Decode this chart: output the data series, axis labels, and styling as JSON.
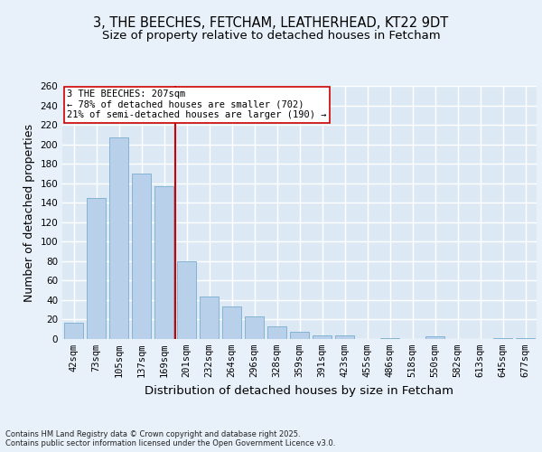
{
  "title1": "3, THE BEECHES, FETCHAM, LEATHERHEAD, KT22 9DT",
  "title2": "Size of property relative to detached houses in Fetcham",
  "xlabel": "Distribution of detached houses by size in Fetcham",
  "ylabel": "Number of detached properties",
  "categories": [
    "42sqm",
    "73sqm",
    "105sqm",
    "137sqm",
    "169sqm",
    "201sqm",
    "232sqm",
    "264sqm",
    "296sqm",
    "328sqm",
    "359sqm",
    "391sqm",
    "423sqm",
    "455sqm",
    "486sqm",
    "518sqm",
    "550sqm",
    "582sqm",
    "613sqm",
    "645sqm",
    "677sqm"
  ],
  "values": [
    17,
    145,
    207,
    170,
    157,
    80,
    44,
    33,
    23,
    13,
    7,
    4,
    4,
    0,
    1,
    0,
    3,
    0,
    0,
    1,
    1
  ],
  "bar_color": "#b8d0ea",
  "bar_edge_color": "#7aadcf",
  "annotation_text": "3 THE BEECHES: 207sqm\n← 78% of detached houses are smaller (702)\n21% of semi-detached houses are larger (190) →",
  "vline_color": "#cc0000",
  "annotation_box_facecolor": "#ffffff",
  "background_color": "#dce9f5",
  "fig_background_color": "#e8f0fa",
  "grid_color": "#ffffff",
  "ylim": [
    0,
    260
  ],
  "yticks": [
    0,
    20,
    40,
    60,
    80,
    100,
    120,
    140,
    160,
    180,
    200,
    220,
    240,
    260
  ],
  "footer": "Contains HM Land Registry data © Crown copyright and database right 2025.\nContains public sector information licensed under the Open Government Licence v3.0.",
  "title_fontsize": 10.5,
  "subtitle_fontsize": 9.5,
  "axis_label_fontsize": 9,
  "tick_fontsize": 7.5,
  "annotation_fontsize": 7.5,
  "footer_fontsize": 6.0
}
